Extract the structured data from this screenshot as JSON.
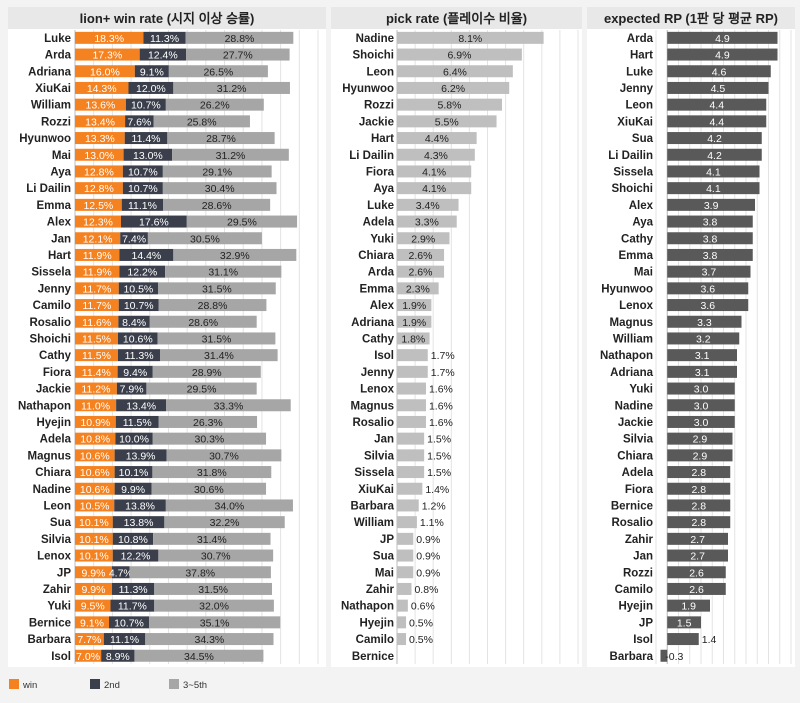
{
  "colors": {
    "win": "#F58220",
    "second": "#3A3F4B",
    "third_fifth": "#A6A6A6",
    "pick": "#BFBFBF",
    "rp": "#595959",
    "header_bg": "#E8E8E8",
    "panel_bg": "#FFFFFF",
    "page_bg": "#F3F3F3",
    "grid": "#E3E3E3"
  },
  "legend": {
    "win": "win",
    "second": "2nd",
    "third_fifth": "3~5th"
  },
  "chart_data": [
    {
      "type": "bar",
      "stacked": true,
      "orientation": "horizontal",
      "title": "lion+ win rate (시지 이상 승률)",
      "xlim": [
        0,
        65
      ],
      "grid": true,
      "categories": [
        "Luke",
        "Arda",
        "Adriana",
        "XiuKai",
        "William",
        "Rozzi",
        "Hyunwoo",
        "Mai",
        "Aya",
        "Li Dailin",
        "Emma",
        "Alex",
        "Jan",
        "Hart",
        "Sissela",
        "Jenny",
        "Camilo",
        "Rosalio",
        "Shoichi",
        "Cathy",
        "Fiora",
        "Jackie",
        "Nathapon",
        "Hyejin",
        "Adela",
        "Magnus",
        "Chiara",
        "Nadine",
        "Leon",
        "Sua",
        "Silvia",
        "Lenox",
        "JP",
        "Zahir",
        "Yuki",
        "Bernice",
        "Barbara",
        "Isol"
      ],
      "series": [
        {
          "name": "win",
          "values": [
            18.3,
            17.3,
            16.0,
            14.3,
            13.6,
            13.4,
            13.3,
            13.0,
            12.8,
            12.8,
            12.5,
            12.3,
            12.1,
            11.9,
            11.9,
            11.7,
            11.7,
            11.6,
            11.5,
            11.5,
            11.4,
            11.2,
            11.0,
            10.9,
            10.8,
            10.6,
            10.6,
            10.6,
            10.5,
            10.1,
            10.1,
            10.1,
            9.9,
            9.9,
            9.5,
            9.1,
            7.7,
            7.0
          ]
        },
        {
          "name": "2nd",
          "values": [
            11.3,
            12.4,
            9.1,
            12.0,
            10.7,
            7.6,
            11.4,
            13.0,
            10.7,
            10.7,
            11.1,
            17.6,
            7.4,
            14.4,
            12.2,
            10.5,
            10.7,
            8.4,
            10.6,
            11.3,
            9.4,
            7.9,
            13.4,
            11.5,
            10.0,
            13.9,
            10.1,
            9.9,
            13.8,
            13.8,
            10.8,
            12.2,
            4.7,
            11.3,
            11.7,
            10.7,
            11.1,
            8.9
          ]
        },
        {
          "name": "3~5th",
          "values": [
            28.8,
            27.7,
            26.5,
            31.2,
            26.2,
            25.8,
            28.7,
            31.2,
            29.1,
            30.4,
            28.6,
            29.5,
            30.5,
            32.9,
            31.1,
            31.5,
            28.8,
            28.6,
            31.5,
            31.4,
            28.9,
            29.5,
            33.3,
            26.3,
            30.3,
            30.7,
            31.8,
            30.6,
            34.0,
            32.2,
            31.4,
            30.7,
            37.8,
            31.5,
            32.0,
            35.1,
            34.3,
            34.5
          ]
        }
      ],
      "value_suffix": "%"
    },
    {
      "type": "bar",
      "orientation": "horizontal",
      "title": "pick rate (플레이수 비율)",
      "xlim": [
        0,
        10
      ],
      "grid": true,
      "categories": [
        "Nadine",
        "Shoichi",
        "Leon",
        "Hyunwoo",
        "Rozzi",
        "Jackie",
        "Hart",
        "Li Dailin",
        "Fiora",
        "Aya",
        "Luke",
        "Adela",
        "Yuki",
        "Chiara",
        "Arda",
        "Emma",
        "Alex",
        "Adriana",
        "Cathy",
        "Isol",
        "Jenny",
        "Lenox",
        "Magnus",
        "Rosalio",
        "Jan",
        "Silvia",
        "Sissela",
        "XiuKai",
        "Barbara",
        "William",
        "JP",
        "Sua",
        "Mai",
        "Zahir",
        "Nathapon",
        "Hyejin",
        "Camilo",
        "Bernice"
      ],
      "values": [
        8.1,
        6.9,
        6.4,
        6.2,
        5.8,
        5.5,
        4.4,
        4.3,
        4.1,
        4.1,
        3.4,
        3.3,
        2.9,
        2.6,
        2.6,
        2.3,
        1.9,
        1.9,
        1.8,
        1.7,
        1.7,
        1.6,
        1.6,
        1.6,
        1.5,
        1.5,
        1.5,
        1.4,
        1.2,
        1.1,
        0.9,
        0.9,
        0.9,
        0.8,
        0.6,
        0.5,
        0.5,
        null
      ],
      "value_suffix": "%"
    },
    {
      "type": "bar",
      "orientation": "horizontal",
      "title": "expected RP (1판 당 평균 RP)",
      "xlim": [
        -0.5,
        5.5
      ],
      "grid": true,
      "categories": [
        "Arda",
        "Hart",
        "Luke",
        "Jenny",
        "Leon",
        "XiuKai",
        "Sua",
        "Li Dailin",
        "Sissela",
        "Shoichi",
        "Alex",
        "Aya",
        "Cathy",
        "Emma",
        "Mai",
        "Hyunwoo",
        "Lenox",
        "Magnus",
        "William",
        "Nathapon",
        "Adriana",
        "Yuki",
        "Nadine",
        "Jackie",
        "Silvia",
        "Chiara",
        "Adela",
        "Fiora",
        "Bernice",
        "Rosalio",
        "Zahir",
        "Jan",
        "Rozzi",
        "Camilo",
        "Hyejin",
        "JP",
        "Isol",
        "Barbara"
      ],
      "values": [
        4.9,
        4.9,
        4.6,
        4.5,
        4.4,
        4.4,
        4.2,
        4.2,
        4.1,
        4.1,
        3.9,
        3.8,
        3.8,
        3.8,
        3.7,
        3.6,
        3.6,
        3.3,
        3.2,
        3.1,
        3.1,
        3.0,
        3.0,
        3.0,
        2.9,
        2.9,
        2.8,
        2.8,
        2.8,
        2.8,
        2.7,
        2.7,
        2.6,
        2.6,
        1.9,
        1.5,
        1.4,
        -0.3
      ],
      "value_suffix": ""
    }
  ]
}
